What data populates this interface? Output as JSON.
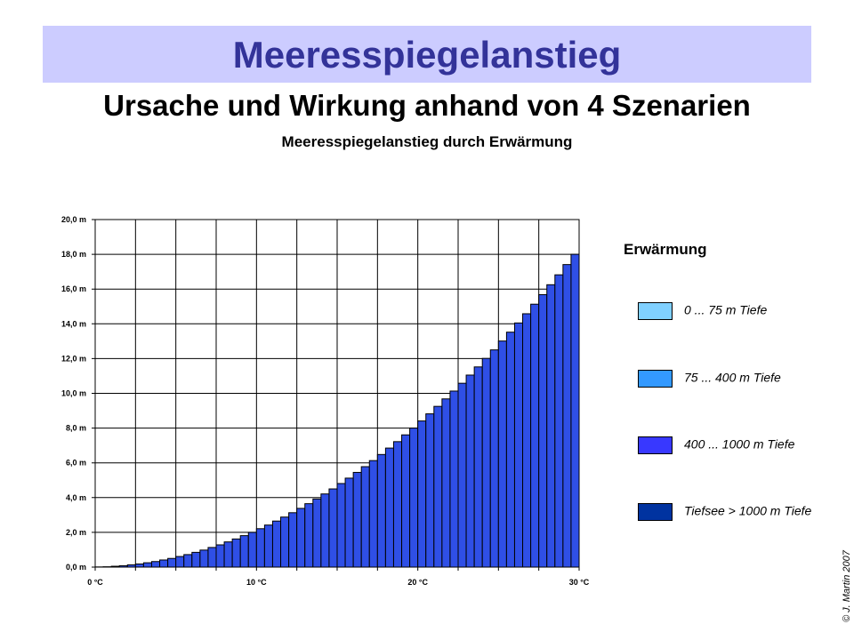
{
  "header": {
    "title": "Meeresspiegelanstieg",
    "subtitle": "Ursache und Wirkung anhand von 4 Szenarien"
  },
  "copyright": "© J. Martin 2007",
  "chart_data": {
    "type": "bar",
    "title": "Meeresspiegelanstieg durch Erwärmung",
    "xlabel": "",
    "ylabel": "",
    "x_ticks": [
      "0 °C",
      "10 °C",
      "20 °C",
      "30 °C"
    ],
    "y_ticks": [
      "0,0 m",
      "2,0 m",
      "4,0 m",
      "6,0 m",
      "8,0 m",
      "10,0 m",
      "12,0 m",
      "14,0 m",
      "16,0 m",
      "18,0 m",
      "20,0 m"
    ],
    "xlim": [
      0,
      30
    ],
    "ylim": [
      0,
      20
    ],
    "grid": true,
    "bar_step": 0.5,
    "bar_color": "#2f4fe6",
    "values": [
      0.01,
      0.02,
      0.05,
      0.08,
      0.13,
      0.18,
      0.25,
      0.32,
      0.41,
      0.5,
      0.61,
      0.72,
      0.85,
      0.98,
      1.13,
      1.28,
      1.45,
      1.62,
      1.81,
      2.0,
      2.21,
      2.42,
      2.65,
      2.88,
      3.13,
      3.38,
      3.65,
      3.92,
      4.21,
      4.5,
      4.81,
      5.12,
      5.45,
      5.78,
      6.13,
      6.48,
      6.85,
      7.22,
      7.61,
      8.0,
      8.41,
      8.82,
      9.25,
      9.68,
      10.13,
      10.58,
      11.05,
      11.52,
      12.01,
      12.5,
      13.01,
      13.52,
      14.05,
      14.58,
      15.13,
      15.68,
      16.25,
      16.82,
      17.41,
      18.0
    ],
    "legend": {
      "title": "Erwärmung",
      "placement": "right",
      "entries": [
        {
          "label": "0 ... 75 m Tiefe",
          "color": "#80d0ff"
        },
        {
          "label": "75 ... 400 m Tiefe",
          "color": "#3399ff"
        },
        {
          "label": "400 ... 1000 m Tiefe",
          "color": "#3838ff"
        },
        {
          "label": "Tiefsee > 1000 m Tiefe",
          "color": "#0033a0"
        }
      ]
    }
  }
}
